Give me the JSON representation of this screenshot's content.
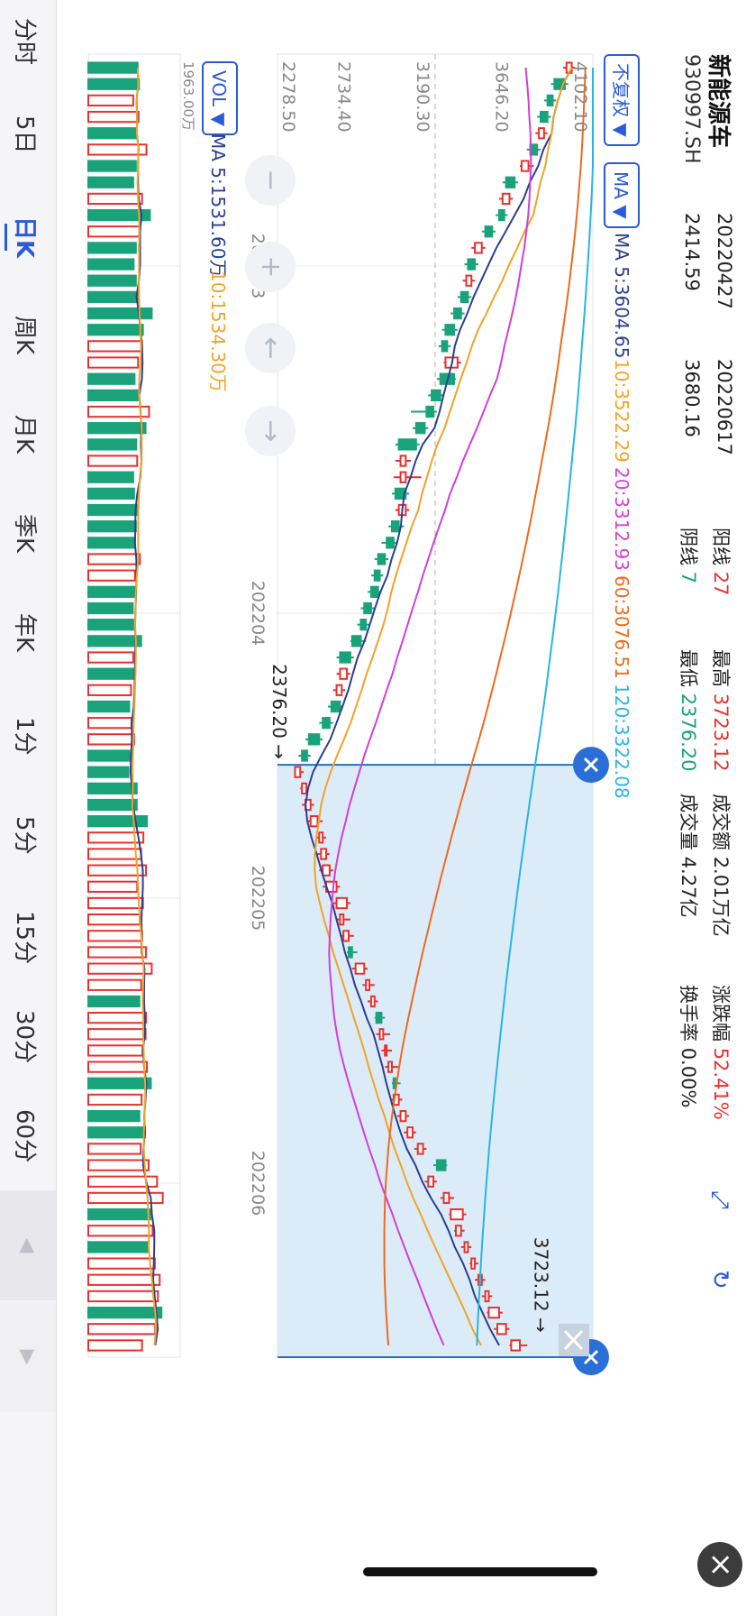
{
  "header": {
    "name": "新能源车",
    "code": "930997.SH",
    "date1": "20220427",
    "val1": "2414.59",
    "date2": "20220617",
    "val2": "3680.16",
    "up_label": "阳线",
    "up_count": "27",
    "down_label": "阴线",
    "down_count": "7",
    "high_label": "最高",
    "high_value": "3723.12",
    "low_label": "最低",
    "low_value": "2376.20",
    "amount_label": "成交额",
    "amount_value": "2.01万亿",
    "volume_label": "成交量",
    "volume_value": "4.27亿",
    "change_label": "涨跌幅",
    "change_value": "52.41%",
    "turnover_label": "换手率",
    "turnover_value": "0.00%"
  },
  "toolbar": {
    "adjust": "不复权 ▼",
    "indicator": "MA ▼",
    "ma_title": "MA 5:3604.65",
    "ma10": "10:3522.29",
    "ma20": "20:3312.93",
    "ma60": "60:3076.51",
    "ma120": "120:3322.08"
  },
  "vol_panel": {
    "selector": "VOL ▼",
    "ma5": "MA 5:1531.60万",
    "ma10": "10:1534.30万",
    "max": "1963.00万"
  },
  "tabs": [
    "分时",
    "5日",
    "日K",
    "周K",
    "月K",
    "季K",
    "年K",
    "1分",
    "5分",
    "15分",
    "30分",
    "60分"
  ],
  "active_tab": "日K",
  "colors": {
    "up": "#e8312f",
    "down": "#1aa37a",
    "ma5": "#2b3f8f",
    "ma10": "#f2a327",
    "ma20": "#d23fd6",
    "ma60": "#ee6a1f",
    "ma120": "#27b6e0",
    "selection": "#dcebf8",
    "accent": "#2a5bd7"
  },
  "chart_data": {
    "type": "candlestick",
    "ylim": [
      2278.5,
      4102.1
    ],
    "y_ticks": [
      "4102.10",
      "3646.20",
      "3190.30",
      "2734.40",
      "2278.50"
    ],
    "x_ticks": [
      "202203",
      "202204",
      "202205",
      "202206"
    ],
    "max_label": "3723.12",
    "min_label": "2376.20",
    "volume_max": "1963.00万",
    "candles": [
      {
        "o": 3950,
        "c": 3980,
        "h": 4000,
        "l": 3930
      },
      {
        "o": 3940,
        "c": 3880,
        "h": 3960,
        "l": 3860
      },
      {
        "o": 3870,
        "c": 3840,
        "h": 3890,
        "l": 3820
      },
      {
        "o": 3840,
        "c": 3800,
        "h": 3860,
        "l": 3780
      },
      {
        "o": 3790,
        "c": 3820,
        "h": 3840,
        "l": 3770
      },
      {
        "o": 3780,
        "c": 3740,
        "h": 3800,
        "l": 3720
      },
      {
        "o": 3690,
        "c": 3730,
        "h": 3760,
        "l": 3680
      },
      {
        "o": 3650,
        "c": 3600,
        "h": 3670,
        "l": 3580
      },
      {
        "o": 3580,
        "c": 3620,
        "h": 3640,
        "l": 3560
      },
      {
        "o": 3590,
        "c": 3560,
        "h": 3610,
        "l": 3540
      },
      {
        "o": 3520,
        "c": 3480,
        "h": 3540,
        "l": 3460
      },
      {
        "o": 3420,
        "c": 3460,
        "h": 3480,
        "l": 3400
      },
      {
        "o": 3420,
        "c": 3380,
        "h": 3440,
        "l": 3360
      },
      {
        "o": 3370,
        "c": 3400,
        "h": 3420,
        "l": 3350
      },
      {
        "o": 3380,
        "c": 3340,
        "h": 3400,
        "l": 3320
      },
      {
        "o": 3340,
        "c": 3300,
        "h": 3360,
        "l": 3280
      },
      {
        "o": 3300,
        "c": 3250,
        "h": 3320,
        "l": 3230
      },
      {
        "o": 3260,
        "c": 3230,
        "h": 3280,
        "l": 3210
      },
      {
        "o": 3250,
        "c": 3320,
        "h": 3340,
        "l": 3240
      },
      {
        "o": 3300,
        "c": 3220,
        "h": 3310,
        "l": 3200
      },
      {
        "o": 3220,
        "c": 3170,
        "h": 3240,
        "l": 3150
      },
      {
        "o": 3180,
        "c": 3140,
        "h": 3200,
        "l": 3050
      },
      {
        "o": 3130,
        "c": 3080,
        "h": 3150,
        "l": 3060
      },
      {
        "o": 3080,
        "c": 2980,
        "h": 3100,
        "l": 2960
      },
      {
        "o": 2990,
        "c": 3020,
        "h": 3050,
        "l": 2960
      },
      {
        "o": 2990,
        "c": 3020,
        "h": 3110,
        "l": 2950
      },
      {
        "o": 3020,
        "c": 2960,
        "h": 3040,
        "l": 2940
      },
      {
        "o": 2980,
        "c": 3020,
        "h": 3040,
        "l": 2960
      },
      {
        "o": 2980,
        "c": 2940,
        "h": 3010,
        "l": 2920
      },
      {
        "o": 2950,
        "c": 2910,
        "h": 2970,
        "l": 2880
      },
      {
        "o": 2900,
        "c": 2860,
        "h": 2920,
        "l": 2840
      },
      {
        "o": 2870,
        "c": 2840,
        "h": 2890,
        "l": 2820
      },
      {
        "o": 2860,
        "c": 2820,
        "h": 2880,
        "l": 2800
      },
      {
        "o": 2820,
        "c": 2780,
        "h": 2840,
        "l": 2760
      },
      {
        "o": 2790,
        "c": 2760,
        "h": 2810,
        "l": 2740
      },
      {
        "o": 2760,
        "c": 2710,
        "h": 2790,
        "l": 2700
      },
      {
        "o": 2700,
        "c": 2640,
        "h": 2720,
        "l": 2620
      },
      {
        "o": 2640,
        "c": 2680,
        "h": 2700,
        "l": 2620
      },
      {
        "o": 2620,
        "c": 2650,
        "h": 2670,
        "l": 2600
      },
      {
        "o": 2640,
        "c": 2590,
        "h": 2660,
        "l": 2570
      },
      {
        "o": 2580,
        "c": 2540,
        "h": 2600,
        "l": 2520
      },
      {
        "o": 2520,
        "c": 2460,
        "h": 2540,
        "l": 2440
      },
      {
        "o": 2450,
        "c": 2420,
        "h": 2470,
        "l": 2400
      },
      {
        "o": 2380,
        "c": 2410,
        "h": 2430,
        "l": 2376.2
      },
      {
        "o": 2420,
        "c": 2445,
        "h": 2460,
        "l": 2410
      },
      {
        "o": 2440,
        "c": 2470,
        "h": 2490,
        "l": 2420
      },
      {
        "o": 2470,
        "c": 2510,
        "h": 2540,
        "l": 2450
      },
      {
        "o": 2520,
        "c": 2540,
        "h": 2560,
        "l": 2500
      },
      {
        "o": 2530,
        "c": 2560,
        "h": 2580,
        "l": 2510
      },
      {
        "o": 2540,
        "c": 2580,
        "h": 2600,
        "l": 2520
      },
      {
        "o": 2560,
        "c": 2620,
        "h": 2640,
        "l": 2540
      },
      {
        "o": 2620,
        "c": 2680,
        "h": 2700,
        "l": 2600
      },
      {
        "o": 2640,
        "c": 2660,
        "h": 2700,
        "l": 2620
      },
      {
        "o": 2660,
        "c": 2690,
        "h": 2720,
        "l": 2640
      },
      {
        "o": 2710,
        "c": 2690,
        "h": 2740,
        "l": 2680
      },
      {
        "o": 2730,
        "c": 2780,
        "h": 2800,
        "l": 2710
      },
      {
        "o": 2790,
        "c": 2810,
        "h": 2840,
        "l": 2770
      },
      {
        "o": 2820,
        "c": 2840,
        "h": 2860,
        "l": 2800
      },
      {
        "o": 2880,
        "c": 2850,
        "h": 2900,
        "l": 2840
      },
      {
        "o": 2870,
        "c": 2890,
        "h": 2930,
        "l": 2850
      },
      {
        "o": 2900,
        "c": 2910,
        "h": 2940,
        "l": 2880
      },
      {
        "o": 2920,
        "c": 2940,
        "h": 2980,
        "l": 2900
      },
      {
        "o": 2960,
        "c": 2950,
        "h": 2990,
        "l": 2940
      },
      {
        "o": 2950,
        "c": 2980,
        "h": 3000,
        "l": 2930
      },
      {
        "o": 2990,
        "c": 3020,
        "h": 3040,
        "l": 2970
      },
      {
        "o": 3030,
        "c": 3060,
        "h": 3080,
        "l": 3010
      },
      {
        "o": 3090,
        "c": 3120,
        "h": 3140,
        "l": 3070
      },
      {
        "o": 3250,
        "c": 3200,
        "h": 3260,
        "l": 3180
      },
      {
        "o": 3150,
        "c": 3180,
        "h": 3200,
        "l": 3130
      },
      {
        "o": 3240,
        "c": 3270,
        "h": 3300,
        "l": 3220
      },
      {
        "o": 3280,
        "c": 3350,
        "h": 3370,
        "l": 3270
      },
      {
        "o": 3310,
        "c": 3340,
        "h": 3360,
        "l": 3300
      },
      {
        "o": 3360,
        "c": 3380,
        "h": 3400,
        "l": 3340
      },
      {
        "o": 3400,
        "c": 3420,
        "h": 3440,
        "l": 3390
      },
      {
        "o": 3440,
        "c": 3460,
        "h": 3480,
        "l": 3420
      },
      {
        "o": 3480,
        "c": 3500,
        "h": 3520,
        "l": 3460
      },
      {
        "o": 3500,
        "c": 3560,
        "h": 3580,
        "l": 3490
      },
      {
        "o": 3550,
        "c": 3600,
        "h": 3620,
        "l": 3530
      },
      {
        "o": 3630,
        "c": 3680,
        "h": 3723.12,
        "l": 3620
      }
    ],
    "volumes": [
      {
        "v": 1120,
        "up": false
      },
      {
        "v": 1150,
        "up": false
      },
      {
        "v": 1020,
        "up": true
      },
      {
        "v": 1140,
        "up": true
      },
      {
        "v": 1080,
        "up": false
      },
      {
        "v": 1320,
        "up": true
      },
      {
        "v": 1080,
        "up": false
      },
      {
        "v": 1020,
        "up": false
      },
      {
        "v": 1220,
        "up": true
      },
      {
        "v": 1400,
        "up": false
      },
      {
        "v": 1160,
        "up": true
      },
      {
        "v": 1080,
        "up": false
      },
      {
        "v": 1030,
        "up": false
      },
      {
        "v": 1080,
        "up": false
      },
      {
        "v": 1120,
        "up": false
      },
      {
        "v": 1440,
        "up": false
      },
      {
        "v": 1240,
        "up": false
      },
      {
        "v": 1220,
        "up": true
      },
      {
        "v": 1130,
        "up": true
      },
      {
        "v": 1050,
        "up": false
      },
      {
        "v": 1150,
        "up": false
      },
      {
        "v": 1380,
        "up": true
      },
      {
        "v": 1300,
        "up": false
      },
      {
        "v": 1090,
        "up": false
      },
      {
        "v": 1110,
        "up": true
      },
      {
        "v": 1020,
        "up": false
      },
      {
        "v": 1040,
        "up": false
      },
      {
        "v": 1100,
        "up": false
      },
      {
        "v": 1080,
        "up": false
      },
      {
        "v": 1060,
        "up": false
      },
      {
        "v": 1170,
        "up": true
      },
      {
        "v": 1060,
        "up": true
      },
      {
        "v": 1060,
        "up": false
      },
      {
        "v": 1010,
        "up": false
      },
      {
        "v": 1020,
        "up": false
      },
      {
        "v": 1200,
        "up": false
      },
      {
        "v": 1020,
        "up": true
      },
      {
        "v": 1030,
        "up": false
      },
      {
        "v": 970,
        "up": true
      },
      {
        "v": 930,
        "up": false
      },
      {
        "v": 980,
        "up": true
      },
      {
        "v": 1040,
        "up": true
      },
      {
        "v": 930,
        "up": false
      },
      {
        "v": 910,
        "up": false
      },
      {
        "v": 1100,
        "up": false
      },
      {
        "v": 1100,
        "up": false
      },
      {
        "v": 1330,
        "up": false
      },
      {
        "v": 1250,
        "up": true
      },
      {
        "v": 1200,
        "up": true
      },
      {
        "v": 1310,
        "up": true
      },
      {
        "v": 1110,
        "up": true
      },
      {
        "v": 1240,
        "up": true
      },
      {
        "v": 1170,
        "up": true
      },
      {
        "v": 1220,
        "up": true
      },
      {
        "v": 1310,
        "up": true
      },
      {
        "v": 1440,
        "up": true
      },
      {
        "v": 1200,
        "up": true
      },
      {
        "v": 1160,
        "up": false
      },
      {
        "v": 1310,
        "up": true
      },
      {
        "v": 1300,
        "up": true
      },
      {
        "v": 1230,
        "up": true
      },
      {
        "v": 1330,
        "up": true
      },
      {
        "v": 1420,
        "up": false
      },
      {
        "v": 1210,
        "up": true
      },
      {
        "v": 1160,
        "up": false
      },
      {
        "v": 1290,
        "up": false
      },
      {
        "v": 1190,
        "up": true
      },
      {
        "v": 1370,
        "up": true
      },
      {
        "v": 1560,
        "up": true
      },
      {
        "v": 1690,
        "up": true
      },
      {
        "v": 1410,
        "up": false
      },
      {
        "v": 1460,
        "up": true
      },
      {
        "v": 1360,
        "up": false
      },
      {
        "v": 1510,
        "up": true
      },
      {
        "v": 1620,
        "up": true
      },
      {
        "v": 1580,
        "up": true
      },
      {
        "v": 1660,
        "up": false
      },
      {
        "v": 1520,
        "up": true
      },
      {
        "v": 1220,
        "up": true
      }
    ]
  }
}
